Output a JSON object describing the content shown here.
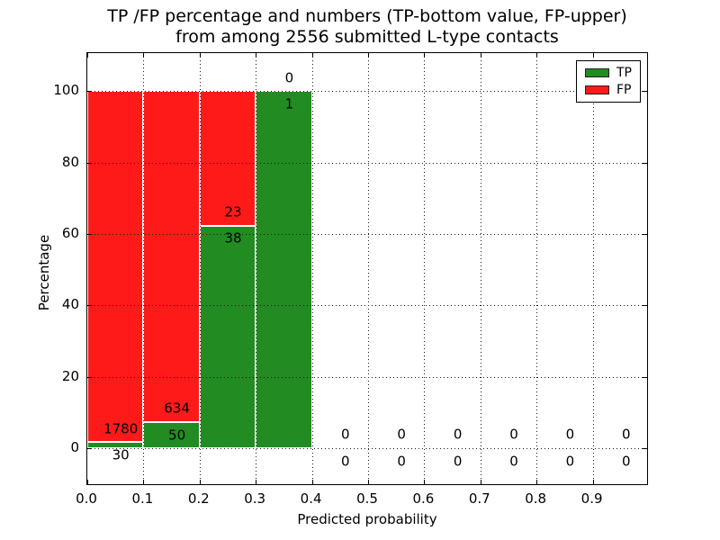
{
  "title": {
    "line1": "TP /FP percentage and numbers (TP-bottom value, FP-upper)",
    "line2": "from among 2556 submitted L-type contacts"
  },
  "chart_data": {
    "type": "bar",
    "stacked": true,
    "title": "TP /FP percentage and numbers (TP-bottom value, FP-upper) from among 2556 submitted L-type contacts",
    "xlabel": "Predicted probability",
    "ylabel": "Percentage",
    "xlim": [
      0.0,
      1.0
    ],
    "ylim": [
      -11,
      111
    ],
    "total_contacts": 2556,
    "grid": "dotted",
    "x_tick_labels": [
      "0.0",
      "0.1",
      "0.2",
      "0.3",
      "0.4",
      "0.5",
      "0.6",
      "0.7",
      "0.8",
      "0.9"
    ],
    "x_tick_values": [
      0.0,
      0.1,
      0.2,
      0.3,
      0.4,
      0.5,
      0.6,
      0.7,
      0.8,
      0.9
    ],
    "y_ticks": [
      0,
      20,
      40,
      60,
      80,
      100
    ],
    "colors": {
      "tp": "#228b22",
      "fp": "#ff1a1a"
    },
    "legend": {
      "position": "upper right",
      "entries": [
        {
          "label": "TP",
          "color": "#228b22"
        },
        {
          "label": "FP",
          "color": "#ff1a1a"
        }
      ]
    },
    "bins": [
      {
        "range": [
          0.0,
          0.1
        ],
        "tp": 30,
        "fp": 1780,
        "tp_pct": 1.66
      },
      {
        "range": [
          0.1,
          0.2
        ],
        "tp": 50,
        "fp": 634,
        "tp_pct": 7.31
      },
      {
        "range": [
          0.2,
          0.3
        ],
        "tp": 38,
        "fp": 23,
        "tp_pct": 62.3
      },
      {
        "range": [
          0.3,
          0.4
        ],
        "tp": 1,
        "fp": 0,
        "tp_pct": 100.0
      },
      {
        "range": [
          0.4,
          0.5
        ],
        "tp": 0,
        "fp": 0,
        "tp_pct": 0
      },
      {
        "range": [
          0.5,
          0.6
        ],
        "tp": 0,
        "fp": 0,
        "tp_pct": 0
      },
      {
        "range": [
          0.6,
          0.7
        ],
        "tp": 0,
        "fp": 0,
        "tp_pct": 0
      },
      {
        "range": [
          0.7,
          0.8
        ],
        "tp": 0,
        "fp": 0,
        "tp_pct": 0
      },
      {
        "range": [
          0.8,
          0.9
        ],
        "tp": 0,
        "fp": 0,
        "tp_pct": 0
      },
      {
        "range": [
          0.9,
          1.0
        ],
        "tp": 0,
        "fp": 0,
        "tp_pct": 0
      }
    ]
  }
}
